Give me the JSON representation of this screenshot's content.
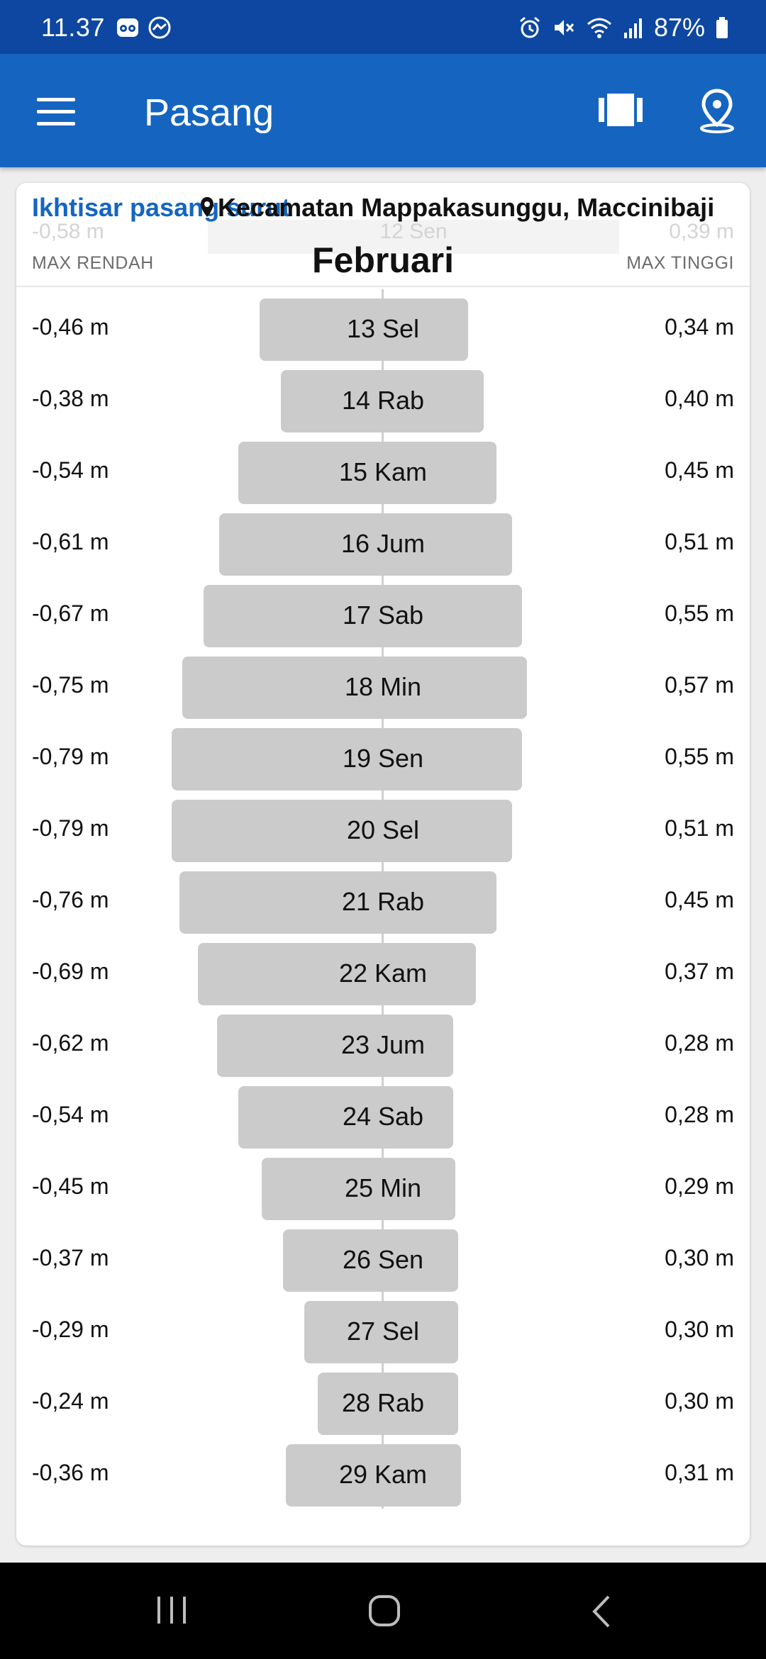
{
  "status_bar": {
    "time": "11.37",
    "battery": "87%"
  },
  "app_bar": {
    "title": "Pasang"
  },
  "card": {
    "title": "Ikhtisar pasang surut",
    "location": "Kecamatan Mappakasunggu, Maccinibaji",
    "month": "Februari",
    "col_left": "MAX RENDAH",
    "col_right": "MAX TINGGI",
    "ghost": {
      "low": "-0,58 m",
      "day": "12 Sen",
      "high": "0,39 m"
    }
  },
  "icons": {
    "status_left": [
      "tripadvisor-icon",
      "messenger-icon"
    ],
    "status_right": [
      "alarm-icon",
      "mute-icon",
      "wifi-icon",
      "signal-icon",
      "battery-icon"
    ],
    "app_bar": [
      "menu-icon",
      "view-icon",
      "location-icon"
    ],
    "nav": [
      "recent-apps-icon",
      "home-icon",
      "back-icon"
    ]
  },
  "colors": {
    "status_bar": "#0d47a1",
    "app_bar": "#1565c0",
    "accent": "#1565c0",
    "bar": "#cbcbcb"
  },
  "chart_data": {
    "type": "bar",
    "units": "m",
    "categories": [
      "13 Sel",
      "14 Rab",
      "15 Kam",
      "16 Jum",
      "17 Sab",
      "18 Min",
      "19 Sen",
      "20 Sel",
      "21 Rab",
      "22 Kam",
      "23 Jum",
      "24 Sab",
      "25 Min",
      "26 Sen",
      "27 Sel",
      "28 Rab",
      "29 Kam"
    ],
    "series": [
      {
        "name": "MAX RENDAH",
        "values": [
          -0.46,
          -0.38,
          -0.54,
          -0.61,
          -0.67,
          -0.75,
          -0.79,
          -0.79,
          -0.76,
          -0.69,
          -0.62,
          -0.54,
          -0.45,
          -0.37,
          -0.29,
          -0.24,
          -0.36
        ]
      },
      {
        "name": "MAX TINGGI",
        "values": [
          0.34,
          0.4,
          0.45,
          0.51,
          0.55,
          0.57,
          0.55,
          0.51,
          0.45,
          0.37,
          0.28,
          0.28,
          0.29,
          0.3,
          0.3,
          0.3,
          0.31
        ]
      }
    ],
    "low_labels": [
      "-0,46 m",
      "-0,38 m",
      "-0,54 m",
      "-0,61 m",
      "-0,67 m",
      "-0,75 m",
      "-0,79 m",
      "-0,79 m",
      "-0,76 m",
      "-0,69 m",
      "-0,62 m",
      "-0,54 m",
      "-0,45 m",
      "-0,37 m",
      "-0,29 m",
      "-0,24 m",
      "-0,36 m"
    ],
    "high_labels": [
      "0,34 m",
      "0,40 m",
      "0,45 m",
      "0,51 m",
      "0,55 m",
      "0,57 m",
      "0,55 m",
      "0,51 m",
      "0,45 m",
      "0,37 m",
      "0,28 m",
      "0,28 m",
      "0,29 m",
      "0,30 m",
      "0,30 m",
      "0,30 m",
      "0,31 m"
    ]
  }
}
